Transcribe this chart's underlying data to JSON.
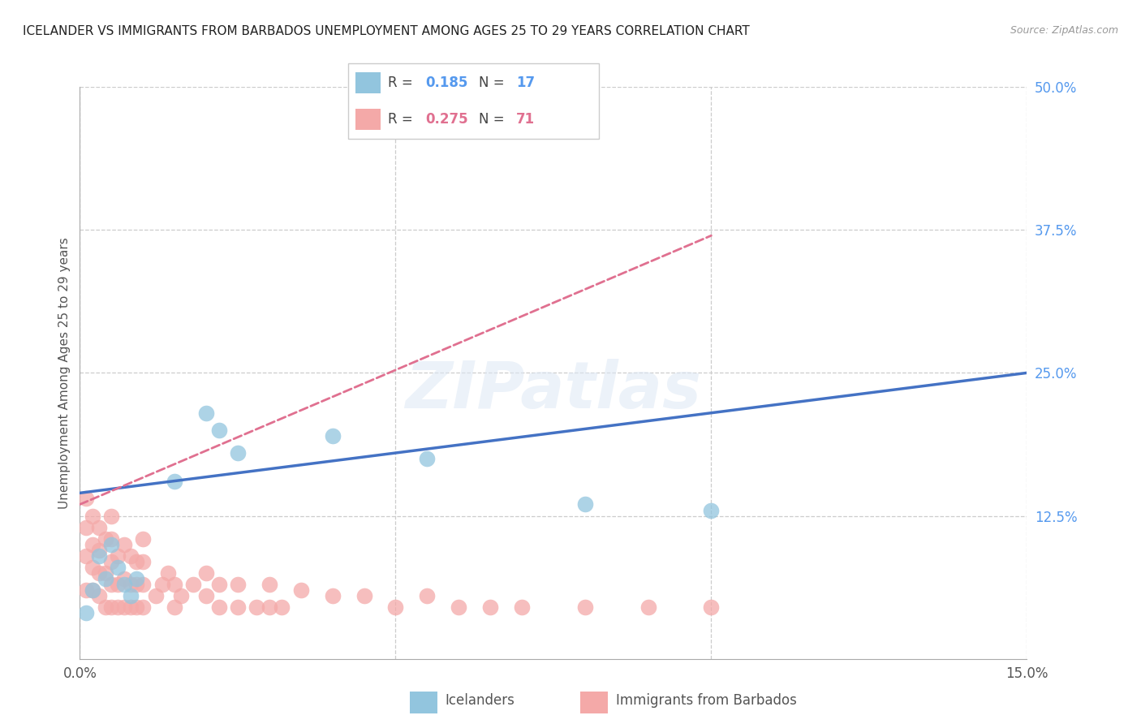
{
  "title": "ICELANDER VS IMMIGRANTS FROM BARBADOS UNEMPLOYMENT AMONG AGES 25 TO 29 YEARS CORRELATION CHART",
  "source": "Source: ZipAtlas.com",
  "ylabel": "Unemployment Among Ages 25 to 29 years",
  "watermark": "ZIPatlas",
  "xlim": [
    0.0,
    0.15
  ],
  "ylim": [
    0.0,
    0.5
  ],
  "y_ticks_right": [
    0.125,
    0.25,
    0.375,
    0.5
  ],
  "y_tick_labels_right": [
    "12.5%",
    "25.0%",
    "37.5%",
    "50.0%"
  ],
  "icelander_color": "#92c5de",
  "barbados_color": "#f4a9a8",
  "line_blue": "#4472c4",
  "line_pink": "#e07090",
  "legend_R_icelander": "0.185",
  "legend_N_icelander": "17",
  "legend_R_barbados": "0.275",
  "legend_N_barbados": "71",
  "icelander_scatter_x": [
    0.001,
    0.002,
    0.003,
    0.004,
    0.005,
    0.006,
    0.007,
    0.008,
    0.02,
    0.022,
    0.025,
    0.04,
    0.055,
    0.08,
    0.1,
    0.009,
    0.015
  ],
  "icelander_scatter_y": [
    0.04,
    0.06,
    0.09,
    0.07,
    0.1,
    0.08,
    0.065,
    0.055,
    0.215,
    0.2,
    0.18,
    0.195,
    0.175,
    0.135,
    0.13,
    0.07,
    0.155
  ],
  "barbados_scatter_x": [
    0.001,
    0.001,
    0.001,
    0.001,
    0.002,
    0.002,
    0.002,
    0.002,
    0.003,
    0.003,
    0.003,
    0.003,
    0.004,
    0.004,
    0.004,
    0.005,
    0.005,
    0.005,
    0.005,
    0.005,
    0.006,
    0.006,
    0.006,
    0.007,
    0.007,
    0.007,
    0.008,
    0.008,
    0.008,
    0.009,
    0.009,
    0.009,
    0.01,
    0.01,
    0.01,
    0.01,
    0.012,
    0.013,
    0.014,
    0.015,
    0.015,
    0.016,
    0.018,
    0.02,
    0.02,
    0.022,
    0.022,
    0.025,
    0.025,
    0.028,
    0.03,
    0.03,
    0.032,
    0.035,
    0.04,
    0.045,
    0.05,
    0.055,
    0.06,
    0.065,
    0.07,
    0.08,
    0.09,
    0.1
  ],
  "barbados_scatter_y": [
    0.06,
    0.09,
    0.115,
    0.14,
    0.06,
    0.08,
    0.1,
    0.125,
    0.055,
    0.075,
    0.095,
    0.115,
    0.045,
    0.075,
    0.105,
    0.045,
    0.065,
    0.085,
    0.105,
    0.125,
    0.045,
    0.065,
    0.09,
    0.045,
    0.07,
    0.1,
    0.045,
    0.065,
    0.09,
    0.045,
    0.065,
    0.085,
    0.045,
    0.065,
    0.085,
    0.105,
    0.055,
    0.065,
    0.075,
    0.045,
    0.065,
    0.055,
    0.065,
    0.055,
    0.075,
    0.045,
    0.065,
    0.045,
    0.065,
    0.045,
    0.045,
    0.065,
    0.045,
    0.06,
    0.055,
    0.055,
    0.045,
    0.055,
    0.045,
    0.045,
    0.045,
    0.045,
    0.045,
    0.045
  ],
  "ice_line_x0": 0.0,
  "ice_line_x1": 0.15,
  "ice_line_y0": 0.145,
  "ice_line_y1": 0.25,
  "bar_line_x0": 0.0,
  "bar_line_x1": 0.1,
  "bar_line_y0": 0.135,
  "bar_line_y1": 0.37,
  "title_fontsize": 11,
  "source_fontsize": 9,
  "axis_label_fontsize": 11,
  "tick_fontsize": 12
}
